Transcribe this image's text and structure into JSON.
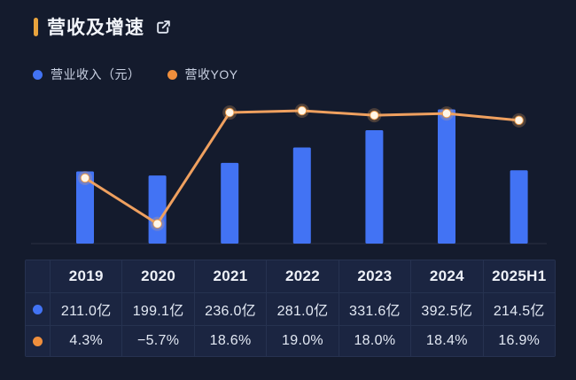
{
  "header": {
    "title": "营收及增速",
    "accent_color": "#e8a33d",
    "external_link_icon": "external-link"
  },
  "legend": [
    {
      "label": "营业收入（元）",
      "color": "#4273f4",
      "icon": "circle-dot"
    },
    {
      "label": "营收YOY",
      "color": "#ef8e3c",
      "icon": "circle-dot"
    }
  ],
  "chart_data": {
    "type": "bar+line",
    "title": "营收及增速",
    "categories": [
      "2019",
      "2020",
      "2021",
      "2022",
      "2023",
      "2024",
      "2025H1"
    ],
    "series": [
      {
        "name": "营业收入（元）",
        "type": "bar",
        "unit": "亿",
        "color": "#4273f4",
        "values": [
          211.0,
          199.1,
          236.0,
          281.0,
          331.6,
          392.5,
          214.5
        ]
      },
      {
        "name": "营收YOY",
        "type": "line",
        "unit": "%",
        "color": "#efa05f",
        "marker_fill": "#fff6e8",
        "values": [
          4.3,
          -5.7,
          18.6,
          19.0,
          18.0,
          18.4,
          16.9
        ]
      }
    ],
    "bar_axis_range": [
      0,
      455
    ],
    "line_axis_range": [
      -10,
      24
    ],
    "grid": false,
    "axes_hidden": true,
    "legend_position": "top-left"
  },
  "table": {
    "columns": [
      "2019",
      "2020",
      "2021",
      "2022",
      "2023",
      "2024",
      "2025H1"
    ],
    "rows": [
      {
        "name": "revenue",
        "dot_color": "#4273f4",
        "cells": [
          "211.0亿",
          "199.1亿",
          "236.0亿",
          "281.0亿",
          "331.6亿",
          "392.5亿",
          "214.5亿"
        ]
      },
      {
        "name": "yoy",
        "dot_color": "#ef8e3c",
        "cells": [
          "4.3%",
          "−5.7%",
          "18.6%",
          "19.0%",
          "18.0%",
          "18.4%",
          "16.9%"
        ]
      }
    ]
  }
}
